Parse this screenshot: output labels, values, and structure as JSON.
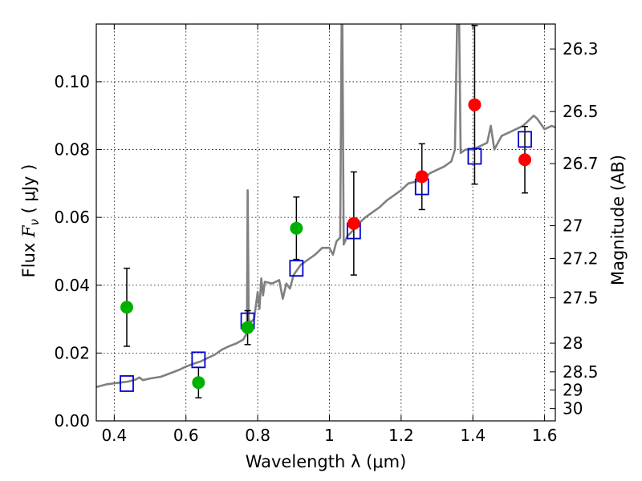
{
  "chart_data": {
    "type": "scatter",
    "xlabel": "Wavelength  λ (μm)",
    "ylabel": "Flux  F_ν  ( μJy )",
    "ylabel_parts": {
      "prefix": "Flux  ",
      "symbol": "F",
      "subscript": "ν",
      "suffix": "  ( μJy )"
    },
    "y2label": "Magnitude (AB)",
    "xlim": [
      0.35,
      1.63
    ],
    "ylim": [
      0.0,
      0.117
    ],
    "grid": true,
    "x_ticks": [
      0.4,
      0.6,
      0.8,
      1.0,
      1.2,
      1.4,
      1.6
    ],
    "x_tick_labels": [
      "0.4",
      "0.6",
      "0.8",
      "1",
      "1.2",
      "1.4",
      "1.6"
    ],
    "y_ticks": [
      0.0,
      0.02,
      0.04,
      0.06,
      0.08,
      0.1
    ],
    "y_tick_labels": [
      "0.00",
      "0.02",
      "0.04",
      "0.06",
      "0.08",
      "0.10"
    ],
    "mag_ticks": [
      26.3,
      26.5,
      26.7,
      27,
      27.2,
      27.5,
      28,
      28.5,
      29,
      30
    ],
    "mag_tick_labels": [
      "26.3",
      "26.5",
      "26.7",
      "27",
      "27.2",
      "27.5",
      "28",
      "28.5",
      "29",
      "30"
    ],
    "colors": {
      "spectrum": "#808080",
      "model": "#0000cc",
      "green": "#00b000",
      "red": "#ff0000",
      "errorbar": "#000000",
      "grid": "#000000"
    },
    "spectrum": [
      [
        0.35,
        0.01
      ],
      [
        0.38,
        0.0108
      ],
      [
        0.41,
        0.0112
      ],
      [
        0.44,
        0.0116
      ],
      [
        0.46,
        0.0122
      ],
      [
        0.47,
        0.0128
      ],
      [
        0.48,
        0.012
      ],
      [
        0.5,
        0.0125
      ],
      [
        0.53,
        0.013
      ],
      [
        0.55,
        0.0138
      ],
      [
        0.58,
        0.015
      ],
      [
        0.6,
        0.016
      ],
      [
        0.62,
        0.0168
      ],
      [
        0.64,
        0.0175
      ],
      [
        0.66,
        0.0185
      ],
      [
        0.68,
        0.0195
      ],
      [
        0.7,
        0.021
      ],
      [
        0.72,
        0.022
      ],
      [
        0.74,
        0.0228
      ],
      [
        0.76,
        0.024
      ],
      [
        0.77,
        0.026
      ],
      [
        0.772,
        0.068
      ],
      [
        0.775,
        0.03
      ],
      [
        0.78,
        0.029
      ],
      [
        0.79,
        0.03
      ],
      [
        0.8,
        0.038
      ],
      [
        0.805,
        0.033
      ],
      [
        0.81,
        0.042
      ],
      [
        0.815,
        0.037
      ],
      [
        0.82,
        0.041
      ],
      [
        0.84,
        0.0405
      ],
      [
        0.86,
        0.0415
      ],
      [
        0.87,
        0.036
      ],
      [
        0.88,
        0.0405
      ],
      [
        0.89,
        0.039
      ],
      [
        0.9,
        0.043
      ],
      [
        0.92,
        0.046
      ],
      [
        0.94,
        0.0475
      ],
      [
        0.96,
        0.049
      ],
      [
        0.98,
        0.051
      ],
      [
        1.0,
        0.051
      ],
      [
        1.01,
        0.049
      ],
      [
        1.02,
        0.053
      ],
      [
        1.03,
        0.054
      ],
      [
        1.034,
        0.117
      ],
      [
        1.036,
        0.117
      ],
      [
        1.04,
        0.052
      ],
      [
        1.05,
        0.0545
      ],
      [
        1.06,
        0.0555
      ],
      [
        1.08,
        0.058
      ],
      [
        1.1,
        0.06
      ],
      [
        1.12,
        0.0615
      ],
      [
        1.14,
        0.063
      ],
      [
        1.16,
        0.065
      ],
      [
        1.18,
        0.0665
      ],
      [
        1.2,
        0.068
      ],
      [
        1.22,
        0.07
      ],
      [
        1.24,
        0.0705
      ],
      [
        1.26,
        0.071
      ],
      [
        1.28,
        0.073
      ],
      [
        1.3,
        0.074
      ],
      [
        1.32,
        0.075
      ],
      [
        1.34,
        0.0765
      ],
      [
        1.35,
        0.08
      ],
      [
        1.356,
        0.117
      ],
      [
        1.362,
        0.117
      ],
      [
        1.366,
        0.079
      ],
      [
        1.38,
        0.08
      ],
      [
        1.4,
        0.08
      ],
      [
        1.42,
        0.081
      ],
      [
        1.44,
        0.082
      ],
      [
        1.45,
        0.087
      ],
      [
        1.46,
        0.08
      ],
      [
        1.48,
        0.084
      ],
      [
        1.5,
        0.085
      ],
      [
        1.52,
        0.086
      ],
      [
        1.54,
        0.087
      ],
      [
        1.55,
        0.088
      ],
      [
        1.57,
        0.09
      ],
      [
        1.58,
        0.089
      ],
      [
        1.6,
        0.086
      ],
      [
        1.62,
        0.087
      ],
      [
        1.63,
        0.0865
      ]
    ],
    "model_points": [
      {
        "x": 0.435,
        "y": 0.011
      },
      {
        "x": 0.635,
        "y": 0.018
      },
      {
        "x": 0.772,
        "y": 0.0295
      },
      {
        "x": 0.908,
        "y": 0.045
      },
      {
        "x": 1.068,
        "y": 0.056
      },
      {
        "x": 1.258,
        "y": 0.069
      },
      {
        "x": 1.405,
        "y": 0.078
      },
      {
        "x": 1.545,
        "y": 0.083
      }
    ],
    "green_points": [
      {
        "x": 0.435,
        "y": 0.0335,
        "err": 0.0115
      },
      {
        "x": 0.635,
        "y": 0.0113,
        "err": 0.0045
      },
      {
        "x": 0.772,
        "y": 0.0275,
        "err": 0.005
      },
      {
        "x": 0.908,
        "y": 0.0568,
        "err": 0.0092
      }
    ],
    "red_points": [
      {
        "x": 1.068,
        "y": 0.0582,
        "err": 0.0152
      },
      {
        "x": 1.258,
        "y": 0.072,
        "err": 0.0097
      },
      {
        "x": 1.405,
        "y": 0.0932,
        "err": 0.0234
      },
      {
        "x": 1.545,
        "y": 0.077,
        "err": 0.0098
      }
    ]
  }
}
